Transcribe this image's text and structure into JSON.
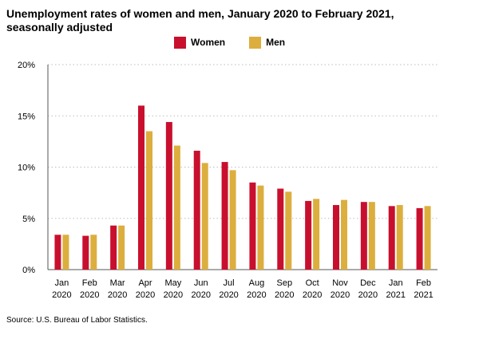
{
  "chart_data": {
    "type": "bar",
    "title": "Unemployment rates of women and men, January 2020 to February 2021, seasonally adjusted",
    "categories": [
      [
        "Jan",
        "2020"
      ],
      [
        "Feb",
        "2020"
      ],
      [
        "Mar",
        "2020"
      ],
      [
        "Apr",
        "2020"
      ],
      [
        "May",
        "2020"
      ],
      [
        "Jun",
        "2020"
      ],
      [
        "Jul",
        "2020"
      ],
      [
        "Aug",
        "2020"
      ],
      [
        "Sep",
        "2020"
      ],
      [
        "Oct",
        "2020"
      ],
      [
        "Nov",
        "2020"
      ],
      [
        "Dec",
        "2020"
      ],
      [
        "Jan",
        "2021"
      ],
      [
        "Feb",
        "2021"
      ]
    ],
    "series": [
      {
        "name": "Women",
        "color": "#c8102e",
        "values": [
          3.4,
          3.3,
          4.3,
          16.0,
          14.4,
          11.6,
          10.5,
          8.5,
          7.9,
          6.7,
          6.3,
          6.6,
          6.2,
          6.0
        ]
      },
      {
        "name": "Men",
        "color": "#dcae3d",
        "values": [
          3.4,
          3.4,
          4.3,
          13.5,
          12.1,
          10.4,
          9.7,
          8.2,
          7.6,
          6.9,
          6.8,
          6.6,
          6.3,
          6.2
        ]
      }
    ],
    "y_ticks": [
      "0%",
      "5%",
      "10%",
      "15%",
      "20%"
    ],
    "ylim": [
      0,
      20
    ],
    "xlabel": "",
    "ylabel": "",
    "grid": true,
    "legend_position": "top-center",
    "source": "Source: U.S. Bureau of Labor Statistics."
  }
}
